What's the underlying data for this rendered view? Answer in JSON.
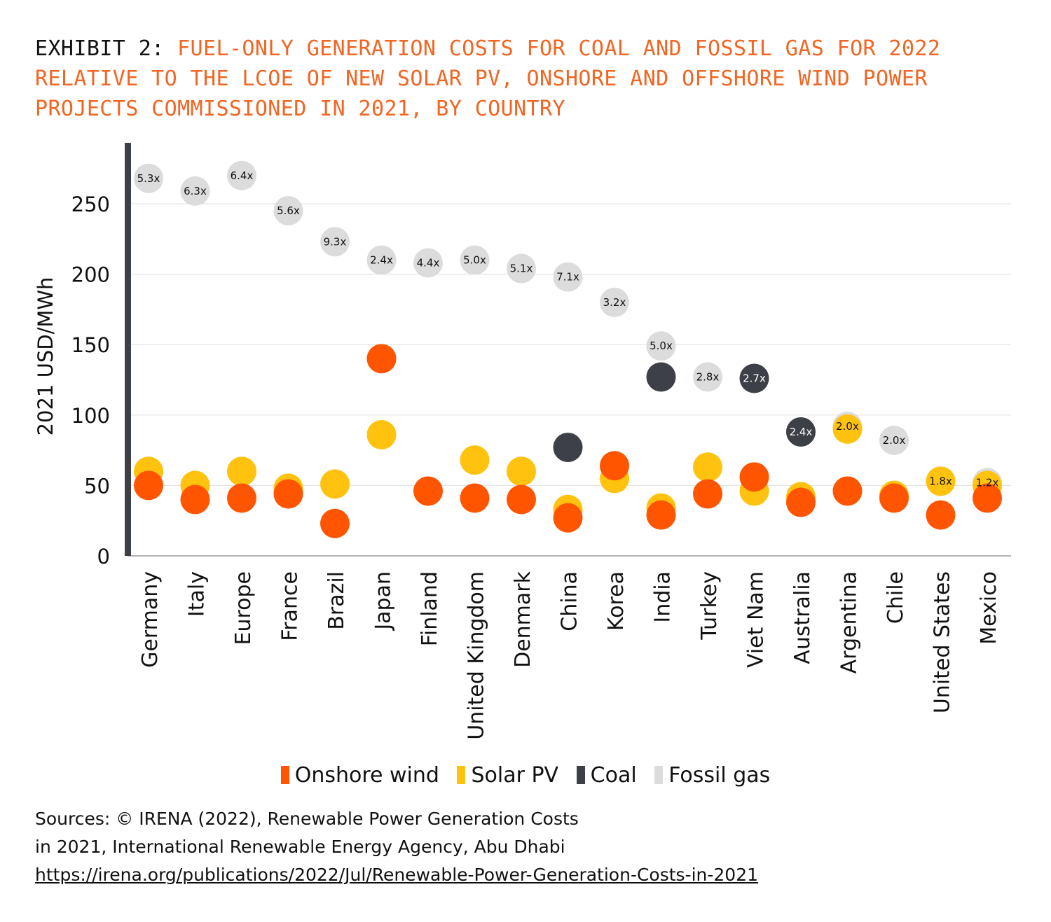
{
  "title": {
    "prefix": "EXHIBIT 2:",
    "text": "FUEL-ONLY GENERATION COSTS FOR COAL AND FOSSIL GAS FOR 2022 RELATIVE TO THE LCOE OF NEW SOLAR PV, ONSHORE AND OFFSHORE WIND POWER PROJECTS COMMISSIONED IN 2021, BY COUNTRY"
  },
  "colors": {
    "onshore_wind": "#ff5500",
    "solar_pv": "#ffc20e",
    "coal": "#3d4046",
    "fossil_gas": "#dcdcdc",
    "title_accent": "#f26522"
  },
  "chart_data": {
    "type": "scatter",
    "ylabel": "2021 USD/MWh",
    "ylim": [
      0,
      290
    ],
    "yticks": [
      0,
      50,
      100,
      150,
      200,
      250
    ],
    "grid": true,
    "legend_position": "bottom",
    "categories": [
      "Germany",
      "Italy",
      "Europe",
      "France",
      "Brazil",
      "Japan",
      "Finland",
      "United Kingdom",
      "Denmark",
      "China",
      "Korea",
      "India",
      "Turkey",
      "Viet Nam",
      "Australia",
      "Argentina",
      "Chile",
      "United States",
      "Mexico"
    ],
    "series": [
      {
        "name": "Fossil gas",
        "key": "fossil_gas",
        "values": [
          268,
          259,
          270,
          245,
          223,
          210,
          208,
          210,
          204,
          198,
          180,
          149,
          127,
          null,
          null,
          92,
          82,
          53,
          52
        ]
      },
      {
        "name": "Coal",
        "key": "coal",
        "values": [
          null,
          null,
          null,
          null,
          null,
          null,
          null,
          null,
          null,
          77,
          null,
          127,
          null,
          126,
          88,
          null,
          null,
          null,
          null
        ]
      },
      {
        "name": "Solar PV",
        "key": "solar_pv",
        "values": [
          60,
          50,
          60,
          48,
          51,
          86,
          null,
          68,
          60,
          33,
          55,
          34,
          63,
          46,
          42,
          90,
          43,
          53,
          50
        ]
      },
      {
        "name": "Onshore wind",
        "key": "onshore_wind",
        "values": [
          50,
          40,
          41,
          44,
          23,
          140,
          46,
          41,
          40,
          27,
          64,
          29,
          44,
          56,
          38,
          46,
          41,
          29,
          41
        ]
      }
    ],
    "multiples": [
      {
        "category": "Germany",
        "series": "fossil_gas",
        "label": "5.3x"
      },
      {
        "category": "Italy",
        "series": "fossil_gas",
        "label": "6.3x"
      },
      {
        "category": "Europe",
        "series": "fossil_gas",
        "label": "6.4x"
      },
      {
        "category": "France",
        "series": "fossil_gas",
        "label": "5.6x"
      },
      {
        "category": "Brazil",
        "series": "fossil_gas",
        "label": "9.3x"
      },
      {
        "category": "Japan",
        "series": "fossil_gas",
        "label": "2.4x"
      },
      {
        "category": "Finland",
        "series": "fossil_gas",
        "label": "4.4x"
      },
      {
        "category": "United Kingdom",
        "series": "fossil_gas",
        "label": "5.0x"
      },
      {
        "category": "Denmark",
        "series": "fossil_gas",
        "label": "5.1x"
      },
      {
        "category": "China",
        "series": "fossil_gas",
        "label": "7.1x"
      },
      {
        "category": "Korea",
        "series": "fossil_gas",
        "label": "3.2x"
      },
      {
        "category": "India",
        "series": "fossil_gas",
        "label": "5.0x"
      },
      {
        "category": "Turkey",
        "series": "fossil_gas",
        "label": "2.8x"
      },
      {
        "category": "Viet Nam",
        "series": "coal",
        "label": "2.7x"
      },
      {
        "category": "Australia",
        "series": "coal",
        "label": "2.4x"
      },
      {
        "category": "Argentina",
        "series": "fossil_gas",
        "label": "2.0x"
      },
      {
        "category": "Chile",
        "series": "fossil_gas",
        "label": "2.0x"
      },
      {
        "category": "United States",
        "series": "fossil_gas",
        "label": "1.8x"
      },
      {
        "category": "Mexico",
        "series": "fossil_gas",
        "label": "1.2x"
      }
    ]
  },
  "legend": [
    {
      "key": "onshore_wind",
      "label": "Onshore wind"
    },
    {
      "key": "solar_pv",
      "label": "Solar PV"
    },
    {
      "key": "coal",
      "label": "Coal"
    },
    {
      "key": "fossil_gas",
      "label": "Fossil gas"
    }
  ],
  "sources": {
    "line1": "Sources: © IRENA (2022), Renewable Power Generation Costs",
    "line2": "in 2021, International Renewable Energy Agency, Abu Dhabi",
    "link": "https://irena.org/publications/2022/Jul/Renewable-Power-Generation-Costs-in-2021"
  }
}
